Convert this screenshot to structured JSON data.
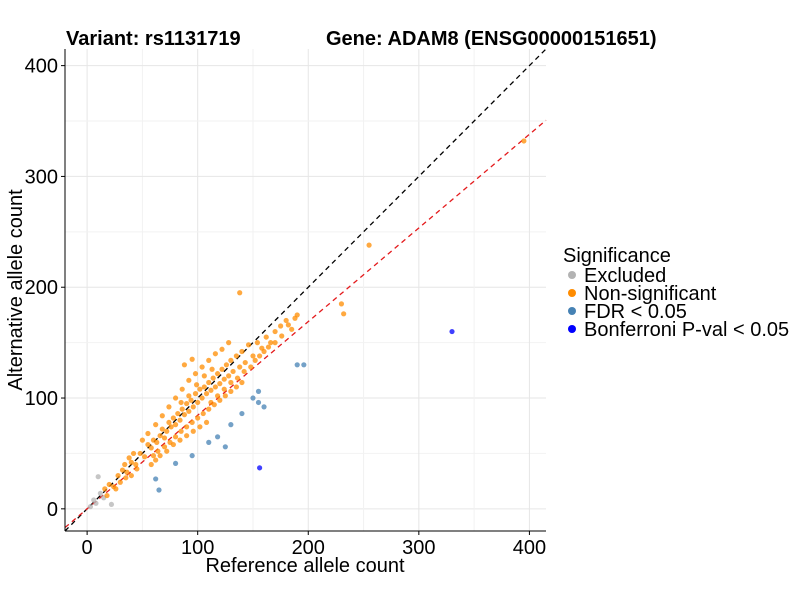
{
  "chart_data": {
    "type": "scatter",
    "title_left": "Variant: rs1131719",
    "title_right": "Gene: ADAM8 (ENSG00000151651)",
    "xlabel": "Reference allele count",
    "ylabel": "Alternative allele count",
    "xlim": [
      -20,
      415
    ],
    "ylim": [
      -20,
      415
    ],
    "xticks": [
      0,
      100,
      200,
      300,
      400
    ],
    "yticks": [
      0,
      100,
      200,
      300,
      400
    ],
    "grid": true,
    "reference_lines": [
      {
        "name": "identity",
        "slope": 1.0,
        "intercept": 0,
        "color": "#000000",
        "style": "dashed"
      },
      {
        "name": "fit",
        "slope": 0.845,
        "intercept": 0,
        "color": "#e41a1c",
        "style": "dashed"
      }
    ],
    "legend": {
      "title": "Significance",
      "placement": "right",
      "entries": [
        {
          "label": "Excluded",
          "color": "#b3b3b3"
        },
        {
          "label": "Non-significant",
          "color": "#ff8c00"
        },
        {
          "label": "FDR < 0.05",
          "color": "#4682b4"
        },
        {
          "label": "Bonferroni P-val < 0.05",
          "color": "#0000ff"
        }
      ]
    },
    "series": [
      {
        "name": "Excluded",
        "color": "#b3b3b3",
        "points": [
          [
            3,
            2
          ],
          [
            8,
            5
          ],
          [
            10,
            29
          ],
          [
            15,
            10
          ],
          [
            22,
            4
          ],
          [
            6,
            8
          ],
          [
            12,
            14
          ]
        ]
      },
      {
        "name": "Non-significant",
        "color": "#ff8c00",
        "points": [
          [
            16,
            18
          ],
          [
            20,
            22
          ],
          [
            24,
            20
          ],
          [
            28,
            30
          ],
          [
            32,
            35
          ],
          [
            36,
            33
          ],
          [
            40,
            42
          ],
          [
            44,
            40
          ],
          [
            48,
            50
          ],
          [
            52,
            47
          ],
          [
            55,
            58
          ],
          [
            58,
            55
          ],
          [
            60,
            62
          ],
          [
            63,
            60
          ],
          [
            66,
            66
          ],
          [
            68,
            72
          ],
          [
            70,
            64
          ],
          [
            72,
            70
          ],
          [
            74,
            78
          ],
          [
            76,
            74
          ],
          [
            78,
            82
          ],
          [
            80,
            76
          ],
          [
            82,
            86
          ],
          [
            84,
            80
          ],
          [
            86,
            90
          ],
          [
            88,
            85
          ],
          [
            90,
            95
          ],
          [
            92,
            88
          ],
          [
            94,
            98
          ],
          [
            96,
            92
          ],
          [
            98,
            104
          ],
          [
            100,
            96
          ],
          [
            102,
            108
          ],
          [
            104,
            100
          ],
          [
            106,
            110
          ],
          [
            108,
            104
          ],
          [
            110,
            114
          ],
          [
            112,
            107
          ],
          [
            114,
            118
          ],
          [
            116,
            110
          ],
          [
            118,
            122
          ],
          [
            120,
            113
          ],
          [
            122,
            126
          ],
          [
            124,
            117
          ],
          [
            126,
            130
          ],
          [
            128,
            120
          ],
          [
            130,
            134
          ],
          [
            132,
            124
          ],
          [
            135,
            138
          ],
          [
            138,
            128
          ],
          [
            140,
            142
          ],
          [
            143,
            132
          ],
          [
            146,
            148
          ],
          [
            150,
            138
          ],
          [
            154,
            150
          ],
          [
            158,
            145
          ],
          [
            162,
            155
          ],
          [
            166,
            150
          ],
          [
            170,
            160
          ],
          [
            175,
            165
          ],
          [
            180,
            170
          ],
          [
            185,
            162
          ],
          [
            190,
            175
          ],
          [
            60,
            48
          ],
          [
            64,
            52
          ],
          [
            70,
            56
          ],
          [
            75,
            60
          ],
          [
            80,
            65
          ],
          [
            85,
            70
          ],
          [
            90,
            74
          ],
          [
            95,
            78
          ],
          [
            100,
            82
          ],
          [
            105,
            86
          ],
          [
            110,
            90
          ],
          [
            115,
            94
          ],
          [
            120,
            98
          ],
          [
            125,
            102
          ],
          [
            130,
            106
          ],
          [
            135,
            110
          ],
          [
            140,
            114
          ],
          [
            50,
            62
          ],
          [
            55,
            68
          ],
          [
            62,
            76
          ],
          [
            68,
            84
          ],
          [
            74,
            92
          ],
          [
            80,
            100
          ],
          [
            86,
            108
          ],
          [
            92,
            116
          ],
          [
            98,
            122
          ],
          [
            104,
            128
          ],
          [
            110,
            134
          ],
          [
            116,
            140
          ],
          [
            122,
            144
          ],
          [
            128,
            150
          ],
          [
            88,
            130
          ],
          [
            95,
            135
          ],
          [
            138,
            195
          ],
          [
            230,
            185
          ],
          [
            232,
            176
          ],
          [
            255,
            238
          ],
          [
            395,
            332
          ],
          [
            45,
            36
          ],
          [
            40,
            30
          ],
          [
            35,
            28
          ],
          [
            30,
            24
          ],
          [
            26,
            18
          ],
          [
            18,
            12
          ],
          [
            42,
            50
          ],
          [
            38,
            46
          ],
          [
            34,
            40
          ],
          [
            58,
            40
          ],
          [
            62,
            44
          ],
          [
            66,
            48
          ],
          [
            72,
            52
          ],
          [
            78,
            58
          ],
          [
            84,
            62
          ],
          [
            90,
            66
          ],
          [
            96,
            70
          ],
          [
            102,
            74
          ],
          [
            108,
            78
          ],
          [
            112,
            96
          ],
          [
            118,
            102
          ],
          [
            124,
            108
          ],
          [
            130,
            114
          ],
          [
            136,
            118
          ],
          [
            142,
            124
          ],
          [
            148,
            128
          ],
          [
            152,
            134
          ],
          [
            156,
            138
          ],
          [
            160,
            142
          ],
          [
            164,
            146
          ],
          [
            170,
            150
          ],
          [
            176,
            156
          ],
          [
            182,
            166
          ],
          [
            188,
            172
          ],
          [
            85,
            96
          ],
          [
            92,
            102
          ],
          [
            99,
            112
          ],
          [
            106,
            120
          ],
          [
            113,
            126
          ]
        ]
      },
      {
        "name": "FDR < 0.05",
        "color": "#4682b4",
        "points": [
          [
            62,
            27
          ],
          [
            65,
            17
          ],
          [
            80,
            41
          ],
          [
            95,
            48
          ],
          [
            110,
            60
          ],
          [
            118,
            65
          ],
          [
            125,
            56
          ],
          [
            130,
            76
          ],
          [
            150,
            100
          ],
          [
            155,
            106
          ],
          [
            160,
            92
          ],
          [
            190,
            130
          ],
          [
            196,
            130
          ],
          [
            155,
            96
          ],
          [
            140,
            86
          ]
        ]
      },
      {
        "name": "Bonferroni P-val < 0.05",
        "color": "#0000ff",
        "points": [
          [
            156,
            37
          ],
          [
            330,
            160
          ]
        ]
      }
    ]
  }
}
